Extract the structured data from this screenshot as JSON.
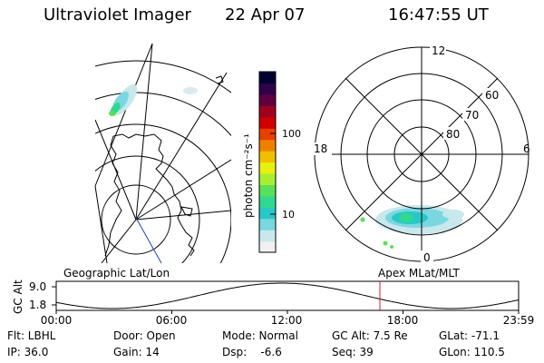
{
  "header": {
    "instrument": "Ultraviolet Imager",
    "date": "22 Apr 07",
    "time": "16:47:55 UT"
  },
  "colorbar": {
    "unit_label": "photon cm⁻²s⁻¹",
    "ticks": [
      "100",
      "10"
    ],
    "colors": [
      "#f0f0f0",
      "#c8e8ec",
      "#7ad7e0",
      "#28c8c8",
      "#30d890",
      "#58e058",
      "#a8ee30",
      "#e8f010",
      "#f0c000",
      "#f08000",
      "#e84000",
      "#d00000",
      "#a00020",
      "#600040",
      "#300048",
      "#000030"
    ]
  },
  "polar_plot": {
    "mlt_labels": [
      "12",
      "18",
      "6",
      "0"
    ],
    "lat_labels": [
      "60",
      "70",
      "80"
    ]
  },
  "timeline": {
    "left_title": "Geographic Lat/Lon",
    "right_title": "Apex  MLat/MLT",
    "axis_label": "GC Alt",
    "y_max": "9.0",
    "y_min": "1.8",
    "x_ticks": [
      "00:00",
      "06:00",
      "12:00",
      "18:00",
      "23:59"
    ],
    "current_marker_hour": 16.8
  },
  "footer": {
    "flt": "Flt: LBHL",
    "door": "Door: Open",
    "mode": "Mode: Normal",
    "gc_alt": "GC Alt: 7.5 Re",
    "glat": "GLat: -71.1",
    "ip": "IP: 36.0",
    "gain": "Gain: 14",
    "dsp": "Dsp:    -6.6",
    "seq": "Seq: 39",
    "glon": "GLon: 110.5"
  }
}
